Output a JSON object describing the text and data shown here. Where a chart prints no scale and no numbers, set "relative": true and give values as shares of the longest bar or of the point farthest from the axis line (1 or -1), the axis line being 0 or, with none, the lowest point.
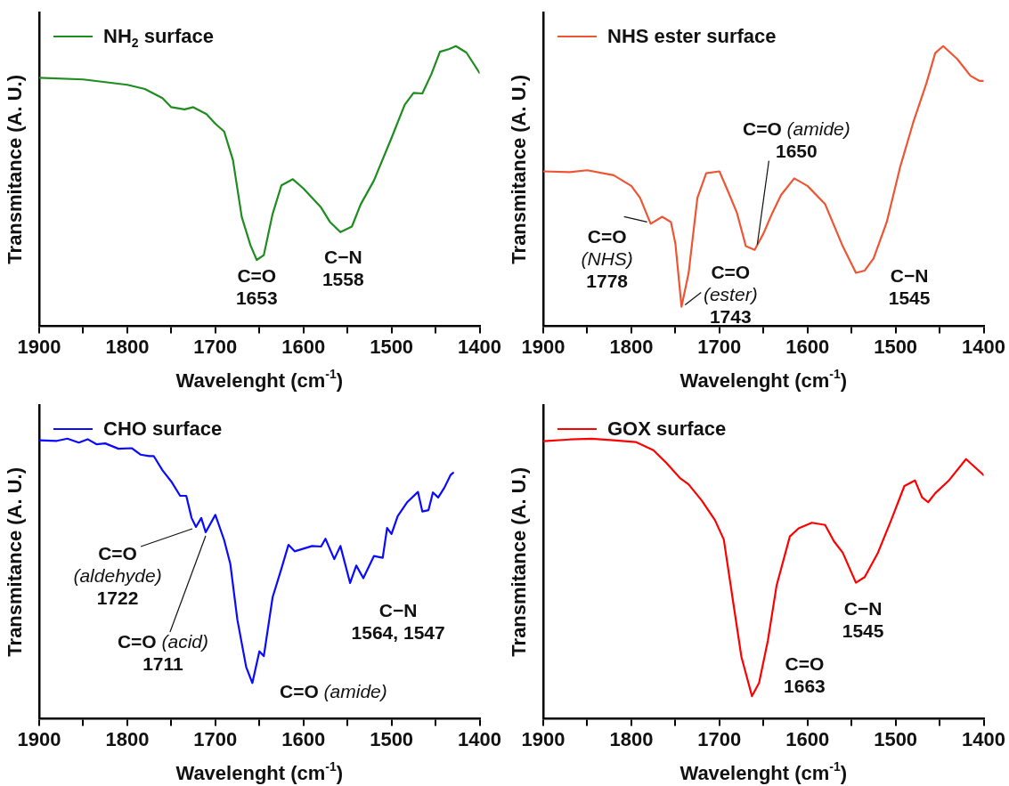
{
  "chart_data": [
    {
      "type": "line",
      "relative": true,
      "xlabel": "Wavelenght (cm$^{-1}$)",
      "ylabel": "Transmitance (A. U.)",
      "xlim": [
        1900,
        1400
      ],
      "xticks": [
        1900,
        {
          "value": 1850,
          "label": null
        },
        1800,
        {
          "value": 1750,
          "label": null
        },
        1700,
        {
          "value": 1650,
          "label": null
        },
        1600,
        {
          "value": 1550,
          "label": null
        },
        1500,
        {
          "value": 1450,
          "label": null
        },
        1400
      ],
      "tick_labels": "x",
      "legend": "top left",
      "marker": "none",
      "line_style": "solid",
      "series": [
        {
          "name": "NH$_{2}$ surface",
          "color": "#1e8c1e",
          "x": [
            1900,
            1850,
            1800,
            1780,
            1760,
            1750,
            1735,
            1725,
            1710,
            1700,
            1690,
            1680,
            1670,
            1660,
            1653,
            1645,
            1635,
            1625,
            1612,
            1600,
            1580,
            1570,
            1558,
            1545,
            1535,
            1520,
            1500,
            1485,
            1475,
            1465,
            1455,
            1445,
            1435,
            1427,
            1415,
            1400
          ],
          "values": [
            0.887,
            0.881,
            0.862,
            0.847,
            0.814,
            0.782,
            0.774,
            0.782,
            0.757,
            0.723,
            0.695,
            0.593,
            0.39,
            0.288,
            0.237,
            0.254,
            0.401,
            0.503,
            0.525,
            0.492,
            0.424,
            0.373,
            0.336,
            0.356,
            0.435,
            0.52,
            0.672,
            0.791,
            0.833,
            0.831,
            0.898,
            0.98,
            0.989,
            1,
            0.977,
            0.904
          ]
        }
      ],
      "annotations": [
        {
          "text": "C=O\n1653",
          "x": 1653,
          "y": 0.237
        },
        {
          "text": "C−N\n1558",
          "x": 1558,
          "y": 0.336
        }
      ]
    },
    {
      "type": "line",
      "relative": true,
      "xlabel": "Wavelenght (cm$^{-1}$)",
      "ylabel": "Transmitance (A. U.)",
      "xlim": [
        1900,
        1400
      ],
      "xticks": [
        1900,
        {
          "value": 1850,
          "label": null
        },
        1800,
        {
          "value": 1750,
          "label": null
        },
        1700,
        {
          "value": 1650,
          "label": null
        },
        1600,
        {
          "value": 1550,
          "label": null
        },
        1500,
        {
          "value": 1450,
          "label": null
        },
        1400
      ],
      "tick_labels": "x",
      "legend": "top left",
      "marker": "none",
      "line_style": "solid",
      "series": [
        {
          "name": "NHS ester surface",
          "color": "#ee5533",
          "x": [
            1900,
            1870,
            1850,
            1820,
            1800,
            1790,
            1778,
            1765,
            1755,
            1750,
            1743,
            1735,
            1725,
            1715,
            1700,
            1690,
            1680,
            1670,
            1660,
            1650,
            1640,
            1630,
            1615,
            1600,
            1580,
            1560,
            1545,
            1535,
            1525,
            1510,
            1495,
            1480,
            1465,
            1455,
            1446,
            1430,
            1415,
            1405,
            1400
          ],
          "values": [
            0.553,
            0.55,
            0.557,
            0.539,
            0.501,
            0.458,
            0.366,
            0.391,
            0.372,
            0.296,
            0.07,
            0.189,
            0.458,
            0.546,
            0.553,
            0.48,
            0.404,
            0.286,
            0.273,
            0.331,
            0.404,
            0.469,
            0.528,
            0.501,
            0.436,
            0.286,
            0.191,
            0.199,
            0.242,
            0.372,
            0.566,
            0.727,
            0.867,
            0.975,
            1,
            0.954,
            0.894,
            0.876,
            0.876
          ]
        }
      ],
      "annotations": [
        {
          "text": "C=O\n(NHS)\n1778",
          "x": 1778,
          "y": 0.366
        },
        {
          "text": "C=O\n(ester)\n1743",
          "x": 1743,
          "y": 0.07
        },
        {
          "text": "C=O (amide)\n1650",
          "x": 1660,
          "y": 0.273
        },
        {
          "text": "C−N\n1545",
          "x": 1545,
          "y": 0.191
        }
      ]
    },
    {
      "type": "line",
      "relative": true,
      "xlabel": "Wavelenght (cm$^{-1}$)",
      "ylabel": "Transmitance (A. U.)",
      "xlim": [
        1900,
        1400
      ],
      "xticks": [
        1900,
        {
          "value": 1850,
          "label": null
        },
        1800,
        {
          "value": 1750,
          "label": null
        },
        1700,
        {
          "value": 1650,
          "label": null
        },
        1600,
        {
          "value": 1550,
          "label": null
        },
        1500,
        {
          "value": 1450,
          "label": null
        },
        1400
      ],
      "tick_labels": "x",
      "legend": "top left",
      "marker": "none",
      "line_style": "solid",
      "series": [
        {
          "name": "CHO surface",
          "color": "#0a0aff",
          "x": [
            1900,
            1880,
            1868,
            1855,
            1845,
            1835,
            1825,
            1810,
            1795,
            1785,
            1775,
            1770,
            1760,
            1750,
            1740,
            1733,
            1727,
            1722,
            1716,
            1711,
            1700,
            1690,
            1683,
            1675,
            1665,
            1658,
            1650,
            1645,
            1635,
            1625,
            1617,
            1610,
            1590,
            1580,
            1575,
            1565,
            1558,
            1547,
            1540,
            1532,
            1520,
            1510,
            1505,
            1500,
            1493,
            1482,
            1470,
            1465,
            1458,
            1453,
            1447,
            1440,
            1433,
            1430
          ],
          "values": [
            0.994,
            0.992,
            1,
            0.986,
            0.998,
            0.98,
            0.983,
            0.964,
            0.966,
            0.943,
            0.938,
            0.938,
            0.887,
            0.847,
            0.796,
            0.796,
            0.717,
            0.685,
            0.717,
            0.666,
            0.728,
            0.638,
            0.553,
            0.354,
            0.185,
            0.128,
            0.241,
            0.224,
            0.434,
            0.536,
            0.621,
            0.598,
            0.617,
            0.615,
            0.643,
            0.57,
            0.617,
            0.485,
            0.547,
            0.502,
            0.581,
            0.575,
            0.681,
            0.66,
            0.723,
            0.774,
            0.81,
            0.74,
            0.745,
            0.808,
            0.79,
            0.825,
            0.87,
            0.878
          ]
        }
      ],
      "annotations": [
        {
          "text": "C=O\n(aldehyde)\n1722",
          "x": 1722,
          "y": 0.685
        },
        {
          "text": "C=O (acid)\n1711",
          "x": 1711,
          "y": 0.666
        },
        {
          "text": "C=O (amide)",
          "x": 1658,
          "y": 0.128
        },
        {
          "text": "C−N\n1564, 1547",
          "x": 1547,
          "y": 0.485
        }
      ]
    },
    {
      "type": "line",
      "relative": true,
      "xlabel": "Wavelenght (cm$^{-1}$)",
      "ylabel": "Transmitance (A. U.)",
      "xlim": [
        1900,
        1400
      ],
      "xticks": [
        1900,
        {
          "value": 1850,
          "label": null
        },
        1800,
        {
          "value": 1750,
          "label": null
        },
        1700,
        {
          "value": 1650,
          "label": null
        },
        1600,
        {
          "value": 1550,
          "label": null
        },
        1500,
        {
          "value": 1450,
          "label": null
        },
        1400
      ],
      "tick_labels": "x",
      "legend": "top left",
      "marker": "none",
      "line_style": "solid",
      "series": [
        {
          "name": "GOX surface",
          "color": "#ff0000",
          "x": [
            1900,
            1870,
            1845,
            1820,
            1795,
            1775,
            1760,
            1745,
            1735,
            1720,
            1705,
            1695,
            1685,
            1675,
            1663,
            1655,
            1645,
            1635,
            1620,
            1610,
            1595,
            1580,
            1570,
            1560,
            1545,
            1535,
            1520,
            1505,
            1490,
            1478,
            1470,
            1463,
            1455,
            1440,
            1420,
            1400
          ],
          "values": [
            0.991,
            0.997,
            1,
            0.994,
            0.988,
            0.959,
            0.913,
            0.86,
            0.837,
            0.779,
            0.709,
            0.64,
            0.43,
            0.221,
            0.081,
            0.128,
            0.279,
            0.477,
            0.651,
            0.68,
            0.7,
            0.692,
            0.634,
            0.593,
            0.486,
            0.506,
            0.593,
            0.709,
            0.831,
            0.851,
            0.791,
            0.773,
            0.805,
            0.849,
            0.927,
            0.87
          ]
        }
      ],
      "annotations": [
        {
          "text": "C=O\n1663",
          "x": 1663,
          "y": 0.081
        },
        {
          "text": "C−N\n1545",
          "x": 1545,
          "y": 0.486
        }
      ]
    }
  ]
}
